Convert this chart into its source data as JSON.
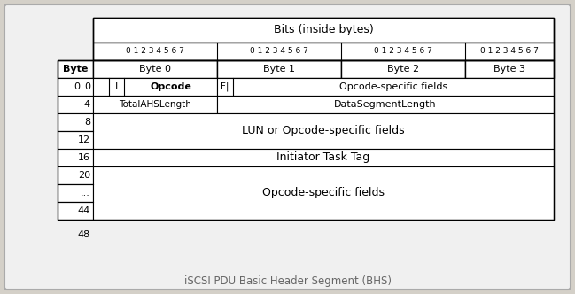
{
  "title": "iSCSI PDU Basic Header Segment (BHS)",
  "bg_outer": "#d4d0c8",
  "bg_inner": "#f0f0f0",
  "table_bg": "#ffffff",
  "bits_header": "Bits (inside bytes)",
  "bit_labels": "0 1 2 3 4 5 6 7",
  "byte_cols": [
    "Byte 0",
    "Byte 1",
    "Byte 2",
    "Byte 3"
  ],
  "byte_label_col": "Byte",
  "caption": "iSCSI PDU Basic Header Segment (BHS)",
  "caption_color": "#666666",
  "row0_dot": ".",
  "row0_I": "I",
  "row0_opcode": "Opcode",
  "row0_F": "F|",
  "row0_specific": "Opcode-specific fields",
  "row1_left": "TotalAHSLength",
  "row1_right": "DataSegmentLength",
  "row23_text": "LUN or Opcode-specific fields",
  "row4_text": "Initiator Task Tag",
  "row567_text": "Opcode-specific fields",
  "byte_labels": [
    "0",
    "4",
    "8",
    "12",
    "16",
    "20",
    "...",
    "44",
    "48"
  ]
}
